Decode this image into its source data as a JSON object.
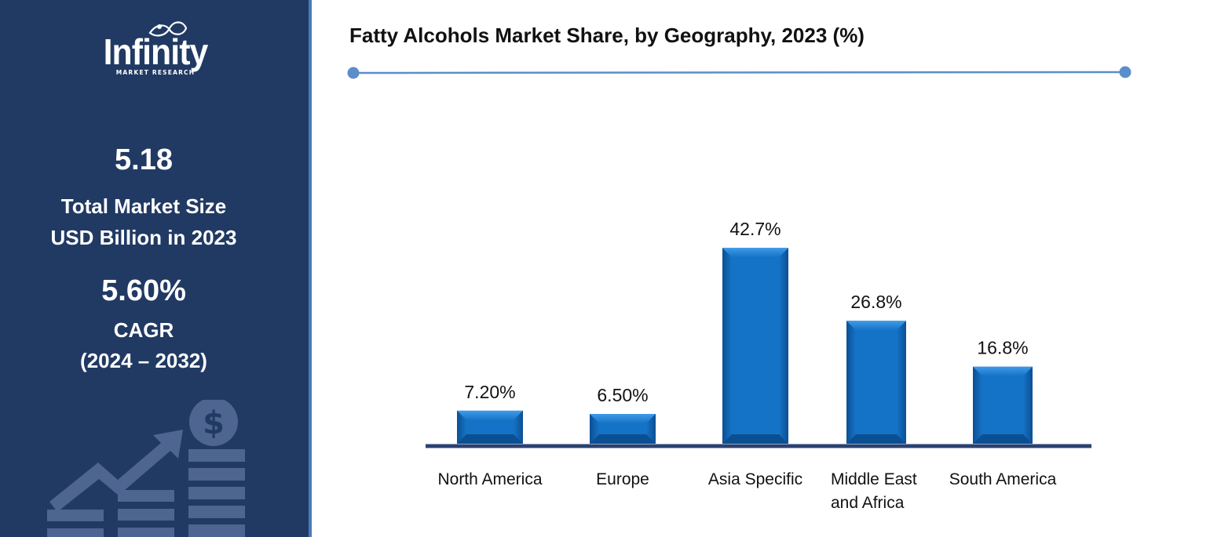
{
  "brand": {
    "name": "Infinity",
    "tagline": "MARKET RESEARCH"
  },
  "stats": {
    "market_size_value": "5.18",
    "market_size_label_1": "Total Market Size",
    "market_size_label_2": "USD Billion in 2023",
    "cagr_value": "5.60%",
    "cagr_label": "CAGR",
    "cagr_period": "(2024 – 2032)"
  },
  "icons": {
    "dollar": "dollar-coin-icon",
    "growth": "growth-arrow-icon"
  },
  "colors": {
    "sidebar": "#213a63",
    "accent_line": "#5b8ec9",
    "bar": "#1573c7",
    "bar_light": "#3f9be8",
    "bar_dark": "#0b4f93",
    "axis": "#2b4272"
  },
  "chart_data": {
    "type": "bar",
    "title": "Fatty Alcohols Market Share, by Geography, 2023 (%)",
    "categories": [
      "North America",
      "Europe",
      "Asia Specific",
      "Middle East and Africa",
      "South America"
    ],
    "category_lines": [
      [
        "North America"
      ],
      [
        "Europe"
      ],
      [
        "Asia Specific"
      ],
      [
        "Middle East",
        "and Africa"
      ],
      [
        "South America"
      ]
    ],
    "values": [
      7.2,
      6.5,
      42.7,
      26.8,
      16.8
    ],
    "value_labels": [
      "7.20%",
      "6.50%",
      "42.7%",
      "26.8%",
      "16.8%"
    ],
    "xlabel": "",
    "ylabel": "",
    "ylim": [
      0,
      50
    ],
    "grid": false,
    "legend": "none"
  }
}
